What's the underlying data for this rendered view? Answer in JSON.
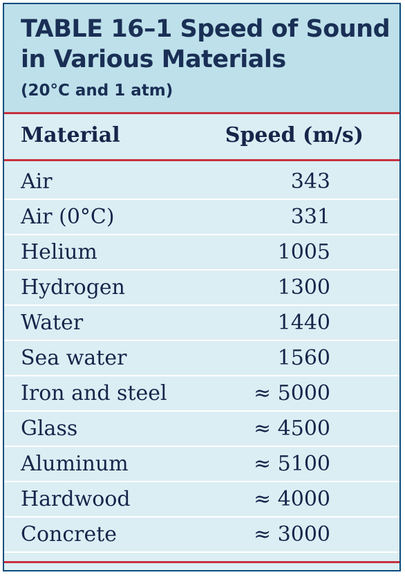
{
  "table": {
    "title": "TABLE 16–1  Speed of Sound in Various Materials",
    "subtitle": "(20°C and 1 atm)",
    "columns": [
      "Material",
      "Speed (m/s)"
    ],
    "rows": [
      {
        "material": "Air",
        "speed": "343"
      },
      {
        "material": "Air (0°C)",
        "speed": "331"
      },
      {
        "material": "Helium",
        "speed": "1005"
      },
      {
        "material": "Hydrogen",
        "speed": "1300"
      },
      {
        "material": "Water",
        "speed": "1440"
      },
      {
        "material": "Sea water",
        "speed": "1560"
      },
      {
        "material": "Iron and steel",
        "speed": "≈ 5000"
      },
      {
        "material": "Glass",
        "speed": "≈ 4500"
      },
      {
        "material": "Aluminum",
        "speed": "≈ 5100"
      },
      {
        "material": "Hardwood",
        "speed": "≈ 4000"
      },
      {
        "material": "Concrete",
        "speed": "≈ 3000"
      }
    ]
  },
  "colors": {
    "header_bg": "#bde0ea",
    "body_bg": "#dbeef4",
    "rule": "#c7313d",
    "text": "#17254a",
    "border": "#0b4b7c"
  }
}
